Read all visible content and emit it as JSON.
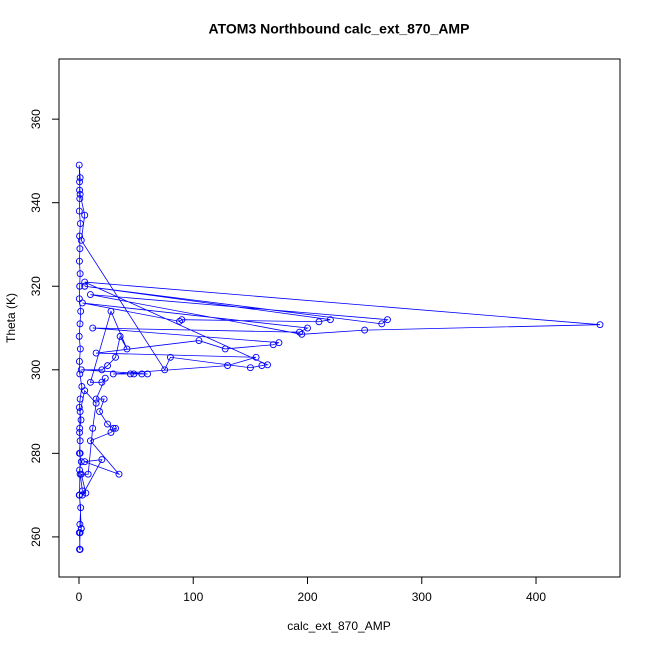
{
  "chart_data": {
    "type": "line",
    "title": "ATOM3 Northbound calc_ext_870_AMP",
    "xlabel": "calc_ext_870_AMP",
    "ylabel": "Theta (K)",
    "xlim": [
      -17.5,
      473.5
    ],
    "ylim": [
      250.4,
      374.4
    ],
    "xticks": [
      0,
      100,
      200,
      300,
      400
    ],
    "yticks": [
      260,
      280,
      300,
      320,
      340,
      360
    ],
    "x": [
      0.5,
      1,
      0.3,
      2,
      0.8,
      1.5,
      0.2,
      3,
      1,
      0.5,
      2,
      0.4,
      1,
      0.6,
      1.8,
      0.3,
      1,
      2.5,
      0.7,
      0.4,
      1.2,
      0.2,
      0.9,
      1.5,
      0.3,
      0.6,
      1,
      0.4,
      0.8,
      0.5,
      1.2,
      0.3,
      0.7,
      0.5,
      1,
      0.2,
      0.5,
      1,
      5,
      2,
      75,
      80,
      150,
      160,
      165,
      5,
      456,
      250,
      195,
      10,
      270,
      265,
      5,
      220,
      210,
      90,
      88,
      3,
      200,
      193,
      12,
      175,
      170,
      128,
      105,
      15,
      155,
      130,
      30,
      45,
      48,
      55,
      60,
      2,
      20,
      25,
      32,
      36,
      42,
      28,
      10,
      20,
      23,
      15,
      22,
      18,
      25,
      30,
      32,
      28,
      10,
      35,
      5,
      20,
      3,
      6,
      2,
      8,
      12,
      15,
      5,
      1,
      0.5,
      1,
      0.5,
      2,
      1,
      0.5
    ],
    "series": [
      {
        "color": "#0000ff",
        "values": [
          257,
          257,
          261,
          262,
          263,
          267,
          270,
          271,
          275,
          276,
          278,
          280,
          283,
          286,
          288,
          291,
          293,
          296,
          299,
          302,
          305,
          308,
          311,
          314,
          317,
          320,
          323,
          326,
          329,
          332,
          335,
          338,
          341,
          343,
          346,
          349,
          345,
          342,
          337,
          331,
          300,
          303,
          300.5,
          301,
          301.2,
          321,
          310.8,
          309.5,
          308.5,
          318,
          312,
          311,
          320,
          312,
          311.5,
          312,
          311.6,
          316,
          310,
          309,
          310,
          306.5,
          306,
          305,
          307,
          304,
          303,
          301,
          299,
          299,
          299,
          299,
          299,
          300,
          300,
          301,
          303,
          308,
          305,
          314,
          297,
          297,
          298,
          293,
          293,
          290,
          287,
          286,
          286,
          285,
          283,
          275,
          278,
          278.5,
          270,
          270.5,
          275,
          275,
          286,
          292,
          295,
          290,
          285,
          280,
          270,
          262,
          261,
          257
        ]
      }
    ]
  }
}
